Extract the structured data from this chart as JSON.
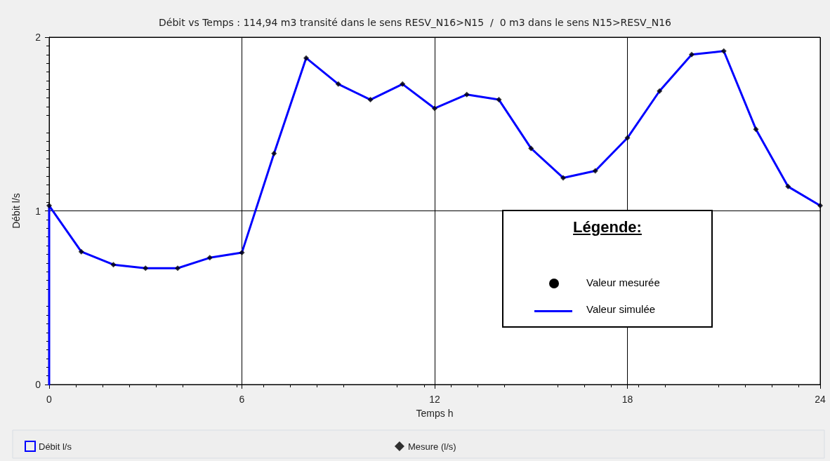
{
  "chart_data": {
    "type": "line",
    "title": "Débit vs Temps : 114,94 m3 transité dans le sens RESV_N16>N15  /  0 m3 dans le sens N15>RESV_N16",
    "xlabel": "Temps h",
    "ylabel": "Débit l/s",
    "xlim": [
      0,
      24
    ],
    "xticks": [
      0,
      6,
      12,
      18,
      24
    ],
    "ylim": [
      0,
      2
    ],
    "yticks": [
      0,
      1,
      2
    ],
    "grid": true,
    "legend": "bottom",
    "annotations": [
      "Légende:",
      "Valeur mesurée",
      "Valeur simulée"
    ],
    "series": [
      {
        "name": "Débit l/s",
        "type": "line",
        "color": "#0000ff",
        "marker": "none",
        "line_style": "solid",
        "x": [
          0,
          0,
          1,
          2,
          3,
          4,
          5,
          6,
          7,
          8,
          9,
          10,
          11,
          12,
          13,
          14,
          15,
          16,
          17,
          18,
          19,
          20,
          21,
          22,
          23,
          24
        ],
        "values": [
          0,
          1.03,
          0.765,
          0.69,
          0.67,
          0.67,
          0.73,
          0.76,
          1.33,
          1.88,
          1.73,
          1.64,
          1.73,
          1.59,
          1.67,
          1.64,
          1.36,
          1.19,
          1.23,
          1.42,
          1.69,
          1.9,
          1.92,
          1.47,
          1.14,
          1.03
        ]
      },
      {
        "name": "Mesure (l/s)",
        "type": "scatter",
        "color": "#000000",
        "marker": "diamond",
        "x": [
          0,
          1,
          2,
          3,
          4,
          5,
          6,
          7,
          8,
          9,
          10,
          11,
          12,
          13,
          14,
          15,
          16,
          17,
          18,
          19,
          20,
          21,
          22,
          23,
          24
        ],
        "values": [
          1.03,
          0.765,
          0.69,
          0.67,
          0.67,
          0.73,
          0.76,
          1.33,
          1.88,
          1.73,
          1.64,
          1.73,
          1.59,
          1.67,
          1.64,
          1.36,
          1.19,
          1.23,
          1.42,
          1.69,
          1.9,
          1.92,
          1.47,
          1.14,
          1.03
        ]
      }
    ]
  }
}
